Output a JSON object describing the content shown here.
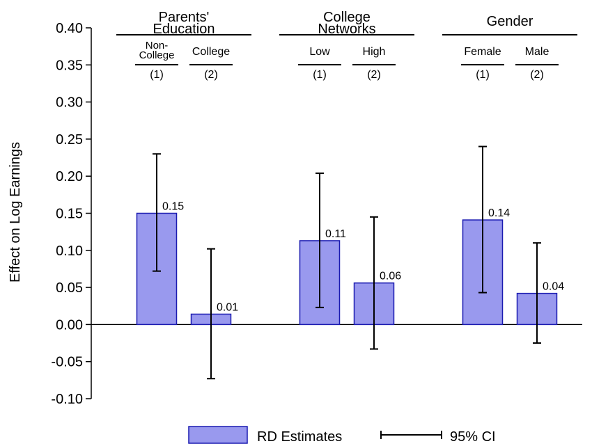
{
  "chart_data": {
    "type": "bar",
    "ylabel": "Effect on Log Earnings",
    "ylim": [
      -0.1,
      0.4
    ],
    "yticks": [
      "-0.10",
      "-0.05",
      "0.00",
      "0.05",
      "0.10",
      "0.15",
      "0.20",
      "0.25",
      "0.30",
      "0.35",
      "0.40"
    ],
    "ytick_values": [
      -0.1,
      -0.05,
      0.0,
      0.05,
      0.1,
      0.15,
      0.2,
      0.25,
      0.3,
      0.35,
      0.4
    ],
    "groups": [
      {
        "title_lines": [
          "Parents'",
          "Education"
        ],
        "bars": [
          {
            "label_lines": [
              "Non-",
              "College"
            ],
            "number": "(1)",
            "value": 0.15,
            "ci_low": 0.072,
            "ci_high": 0.23,
            "value_label": "0.15"
          },
          {
            "label_lines": [
              "College"
            ],
            "number": "(2)",
            "value": 0.014,
            "ci_low": -0.073,
            "ci_high": 0.102,
            "value_label": "0.01"
          }
        ]
      },
      {
        "title_lines": [
          "College",
          "Networks"
        ],
        "bars": [
          {
            "label_lines": [
              "Low"
            ],
            "number": "(1)",
            "value": 0.113,
            "ci_low": 0.023,
            "ci_high": 0.204,
            "value_label": "0.11"
          },
          {
            "label_lines": [
              "High"
            ],
            "number": "(2)",
            "value": 0.056,
            "ci_low": -0.033,
            "ci_high": 0.145,
            "value_label": "0.06"
          }
        ]
      },
      {
        "title_lines": [
          "Gender"
        ],
        "bars": [
          {
            "label_lines": [
              "Female"
            ],
            "number": "(1)",
            "value": 0.141,
            "ci_low": 0.043,
            "ci_high": 0.24,
            "value_label": "0.14"
          },
          {
            "label_lines": [
              "Male"
            ],
            "number": "(2)",
            "value": 0.042,
            "ci_low": -0.025,
            "ci_high": 0.11,
            "value_label": "0.04"
          }
        ]
      }
    ],
    "legend": {
      "bar_label": "RD Estimates",
      "ci_label": "95% CI",
      "placement": "bottom-center"
    },
    "colors": {
      "bar_fill": "#9999ee",
      "bar_stroke": "#1a1ab0",
      "ci": "#000000",
      "text": "#000000"
    }
  }
}
